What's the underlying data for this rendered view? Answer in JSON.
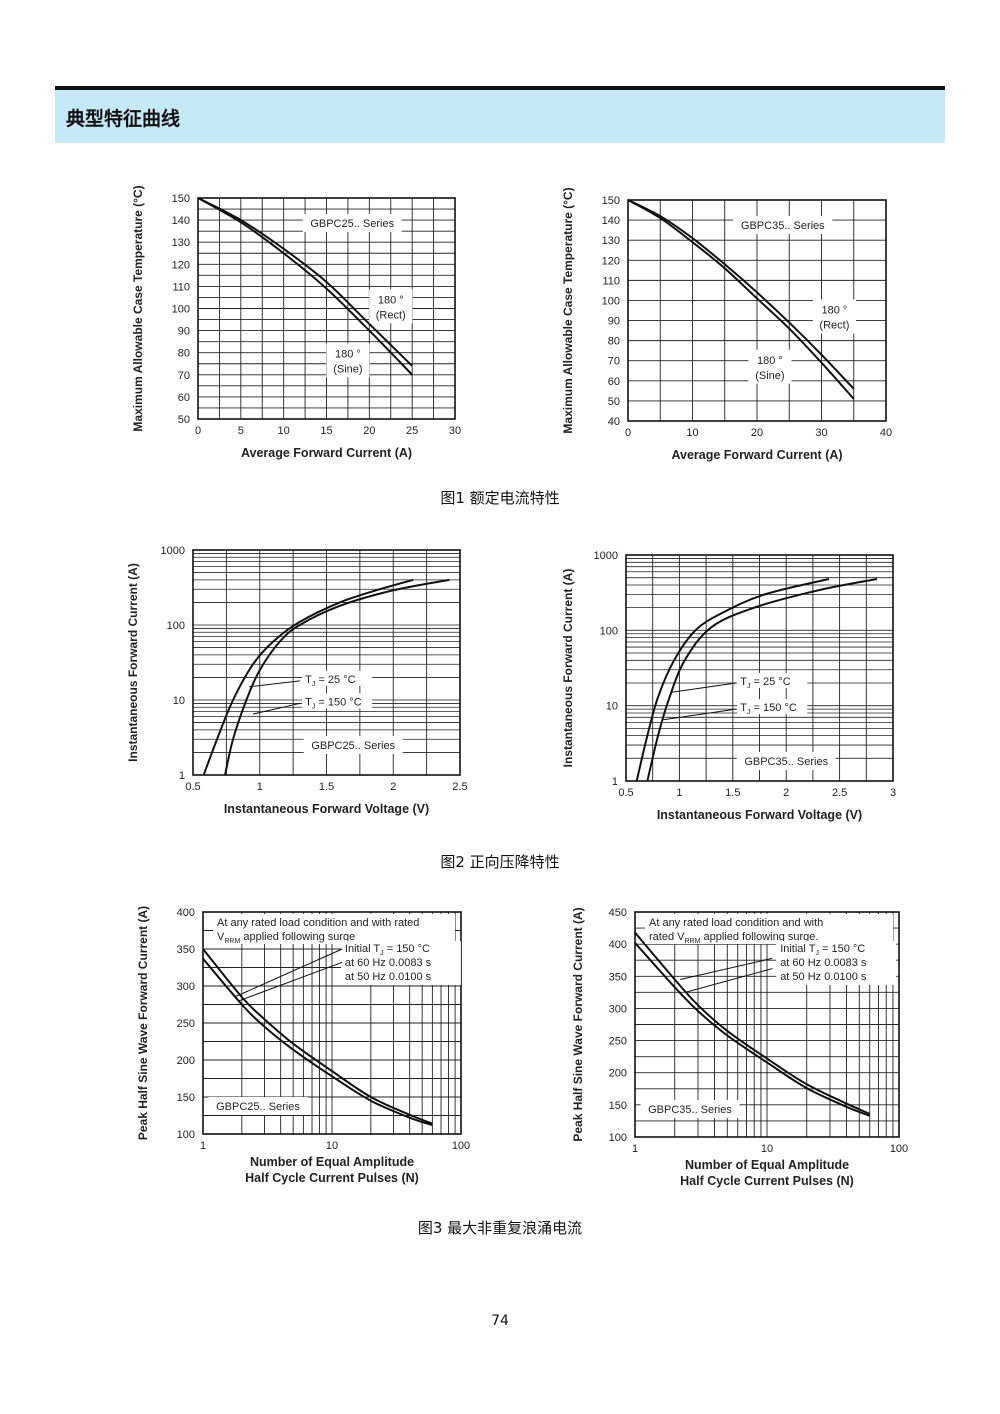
{
  "section": {
    "title": "典型特征曲线"
  },
  "captions": {
    "fig1": "图1  额定电流特性",
    "fig2": "图2  正向压降特性",
    "fig3": "图3  最大非重复浪涌电流"
  },
  "page_number": "74",
  "chart_data": [
    {
      "id": "fig1-gbpc25",
      "type": "line",
      "xlabel": "Average Forward Current (A)",
      "ylabel": "Maximum Allowable Case Temperature (°C)",
      "xlim": [
        0,
        30
      ],
      "ylim": [
        50,
        150
      ],
      "xticks": [
        0,
        5,
        10,
        15,
        20,
        25,
        30
      ],
      "yticks": [
        50,
        60,
        70,
        80,
        90,
        100,
        110,
        120,
        130,
        140,
        150
      ],
      "grid": true,
      "xminor": 2.5,
      "yminor": 5,
      "series_label": "GBPC25.. Series",
      "series": [
        {
          "name": "180 ° (Rect)",
          "x": [
            0,
            5,
            10,
            15,
            20,
            25
          ],
          "y": [
            150,
            140,
            127,
            112,
            93,
            74
          ]
        },
        {
          "name": "180 ° (Sine)",
          "x": [
            0,
            5,
            10,
            15,
            20,
            25
          ],
          "y": [
            150,
            139,
            125,
            109,
            90,
            70
          ]
        }
      ],
      "annotations": [
        {
          "lines": [
            "180 °",
            "(Rect)"
          ],
          "x": 22.5,
          "y": 101
        },
        {
          "lines": [
            "180 °",
            "(Sine)"
          ],
          "x": 17.5,
          "y": 76.5
        }
      ]
    },
    {
      "id": "fig1-gbpc35",
      "type": "line",
      "xlabel": "Average Forward Current (A)",
      "ylabel": "Maximum Allowable Case Temperature (°C)",
      "xlim": [
        0,
        40
      ],
      "ylim": [
        40,
        150
      ],
      "xticks": [
        0,
        10,
        20,
        30,
        40
      ],
      "yticks": [
        40,
        50,
        60,
        70,
        80,
        90,
        100,
        110,
        120,
        130,
        140,
        150
      ],
      "grid": true,
      "xminor": 5,
      "yminor": 10,
      "series_label": "GBPC35.. Series",
      "series": [
        {
          "name": "180 ° (Rect)",
          "x": [
            0,
            5,
            10,
            15,
            20,
            25,
            30,
            35
          ],
          "y": [
            150,
            142,
            131,
            118,
            104,
            89,
            73,
            56
          ]
        },
        {
          "name": "180 ° (Sine)",
          "x": [
            0,
            5,
            10,
            15,
            20,
            25,
            30,
            35
          ],
          "y": [
            150,
            141,
            129,
            116,
            101,
            86,
            69,
            51
          ]
        }
      ],
      "annotations": [
        {
          "lines": [
            "180 °",
            "(Rect)"
          ],
          "x": 32,
          "y": 92
        },
        {
          "lines": [
            "180 °",
            "(Sine)"
          ],
          "x": 22,
          "y": 67
        }
      ]
    },
    {
      "id": "fig2-gbpc25",
      "type": "line",
      "xscale": "linear",
      "yscale": "log",
      "xlabel": "Instantaneous Forward Voltage (V)",
      "ylabel": "Instantaneous Forward Current (A)",
      "xlim": [
        0.5,
        2.5
      ],
      "ylim": [
        1,
        1000
      ],
      "xticks": [
        0.5,
        1,
        1.5,
        2,
        2.5
      ],
      "xticklabels": [
        "0.5",
        "1",
        "1.5",
        "2",
        "2.5"
      ],
      "yticks": [
        1,
        10,
        100,
        1000
      ],
      "grid": true,
      "xminor": 0.25,
      "series_label": "GBPC25.. Series",
      "series": [
        {
          "name": "TJ = 25 °C",
          "x": [
            0.58,
            0.68,
            0.8,
            0.95,
            1.1,
            1.3,
            1.6,
            1.9,
            2.15
          ],
          "y": [
            1,
            3,
            10,
            30,
            60,
            110,
            200,
            300,
            400
          ]
        },
        {
          "name": "TJ = 150 °C",
          "x": [
            0.74,
            0.8,
            0.9,
            1.0,
            1.15,
            1.3,
            1.6,
            2.0,
            2.42
          ],
          "y": [
            1,
            3,
            10,
            25,
            60,
            100,
            180,
            290,
            400
          ]
        }
      ],
      "labels": [
        {
          "text": "T",
          "sub": "J",
          "rest": " = 25 °C",
          "x": 1.34,
          "y": 18,
          "leader": [
            1.3,
            18,
            0.92,
            15
          ]
        },
        {
          "text": "T",
          "sub": "J",
          "rest": " = 150 °C",
          "x": 1.34,
          "y": 9,
          "leader": [
            1.3,
            9,
            0.95,
            6.5
          ]
        }
      ]
    },
    {
      "id": "fig2-gbpc35",
      "type": "line",
      "xscale": "linear",
      "yscale": "log",
      "xlabel": "Instantaneous Forward Voltage (V)",
      "ylabel": "Instantaneous Forward Current (A)",
      "xlim": [
        0.5,
        3
      ],
      "ylim": [
        1,
        1000
      ],
      "xticks": [
        0.5,
        1,
        1.5,
        2,
        2.5,
        3
      ],
      "xticklabels": [
        "0.5",
        "1",
        "1.5",
        "2",
        "2.5",
        "3"
      ],
      "yticks": [
        1,
        10,
        100,
        1000
      ],
      "grid": true,
      "xminor": 0.25,
      "series_label": "GBPC35.. Series",
      "series": [
        {
          "name": "TJ = 25 °C",
          "x": [
            0.6,
            0.7,
            0.8,
            0.95,
            1.15,
            1.4,
            1.8,
            2.4
          ],
          "y": [
            1,
            4,
            13,
            40,
            100,
            170,
            300,
            480
          ]
        },
        {
          "name": "TJ = 150 °C",
          "x": [
            0.7,
            0.8,
            0.9,
            1.05,
            1.3,
            1.7,
            2.3,
            2.85
          ],
          "y": [
            1,
            4,
            12,
            40,
            110,
            200,
            340,
            480
          ]
        }
      ],
      "labels": [
        {
          "text": "T",
          "sub": "J",
          "rest": " = 25 °C",
          "x": 1.57,
          "y": 20,
          "leader": [
            1.53,
            20,
            0.92,
            15
          ]
        },
        {
          "text": "T",
          "sub": "J",
          "rest": " = 150 °C",
          "x": 1.57,
          "y": 9,
          "leader": [
            1.53,
            9,
            0.85,
            6.5
          ]
        }
      ]
    },
    {
      "id": "fig3-gbpc25",
      "type": "line",
      "xscale": "log",
      "yscale": "linear",
      "xlabel": [
        "Number of Equal Amplitude",
        "Half Cycle Current Pulses (N)"
      ],
      "ylabel": "Peak Half Sine Wave Forward Current (A)",
      "xlim": [
        1,
        100
      ],
      "ylim": [
        100,
        400
      ],
      "xticks": [
        1,
        10,
        100
      ],
      "yticks": [
        100,
        150,
        200,
        250,
        300,
        350,
        400
      ],
      "grid": true,
      "yminor": 25,
      "series_label": "GBPC25.. Series",
      "series": [
        {
          "name": "upper",
          "x": [
            1,
            2,
            3,
            5,
            10,
            20,
            40,
            60
          ],
          "y": [
            350,
            285,
            255,
            222,
            185,
            150,
            126,
            114
          ]
        },
        {
          "name": "lower",
          "x": [
            1,
            2,
            3,
            5,
            10,
            20,
            40,
            60
          ],
          "y": [
            337,
            275,
            245,
            214,
            178,
            145,
            122,
            112
          ]
        }
      ],
      "note_lines": [
        "At any rated load condition and with rated",
        "applied following surge"
      ],
      "note_vrrm": "V",
      "note_vrrm_sub": "RRM",
      "conditions": [
        {
          "text": "Initial T",
          "sub": "J",
          "rest": " = 150 °C"
        },
        {
          "text": "at 60 Hz 0.0083 s"
        },
        {
          "text": "at 50 Hz 0.0100 s"
        }
      ],
      "leaders": [
        [
          12,
          350,
          1.8,
          286
        ],
        [
          12,
          332,
          1.9,
          280
        ]
      ]
    },
    {
      "id": "fig3-gbpc35",
      "type": "line",
      "xscale": "log",
      "yscale": "linear",
      "xlabel": [
        "Number of Equal Amplitude",
        "Half Cycle Current Pulses (N)"
      ],
      "ylabel": "Peak Half Sine Wave Forward Current (A)",
      "xlim": [
        1,
        100
      ],
      "ylim": [
        100,
        450
      ],
      "xticks": [
        1,
        10,
        100
      ],
      "yticks": [
        100,
        150,
        200,
        250,
        300,
        350,
        400,
        450
      ],
      "grid": true,
      "yminor": 25,
      "series_label": "GBPC35.. Series",
      "series": [
        {
          "name": "upper",
          "x": [
            1,
            2,
            3,
            5,
            10,
            20,
            40,
            60
          ],
          "y": [
            418,
            345,
            305,
            265,
            222,
            182,
            152,
            136
          ]
        },
        {
          "name": "lower",
          "x": [
            1,
            2,
            3,
            5,
            10,
            20,
            40,
            60
          ],
          "y": [
            402,
            333,
            296,
            258,
            216,
            176,
            147,
            133
          ]
        }
      ],
      "note_lines": [
        "At any rated load condition and with",
        "applied following surge."
      ],
      "note_vrrm": "rated V",
      "note_vrrm_sub": "RRM",
      "conditions": [
        {
          "text": "Initial T",
          "sub": "J",
          "rest": " = 150 °C"
        },
        {
          "text": "at 60 Hz 0.0083 s"
        },
        {
          "text": "at 50 Hz 0.0100 s"
        }
      ],
      "leaders": [
        [
          11,
          378,
          2.2,
          345
        ],
        [
          11,
          362,
          2.4,
          325
        ]
      ]
    }
  ]
}
